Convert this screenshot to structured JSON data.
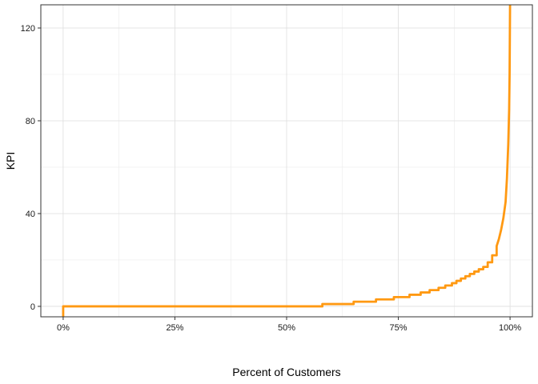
{
  "chart_data": {
    "type": "line",
    "step": true,
    "title": "",
    "xlabel": "Percent of Customers",
    "ylabel": "KPI",
    "xlim": [
      -0.05,
      1.05
    ],
    "ylim": [
      -4.5,
      130
    ],
    "x_ticks": [
      0,
      0.25,
      0.5,
      0.75,
      1.0
    ],
    "x_tick_labels": [
      "0%",
      "25%",
      "50%",
      "75%",
      "100%"
    ],
    "y_ticks": [
      0,
      40,
      80,
      120
    ],
    "y_tick_labels": [
      "0",
      "40",
      "80",
      "120"
    ],
    "grid": true,
    "legend": "none",
    "line_color": "#FF9912",
    "series": [
      {
        "x": [
          0,
          0,
          0.58,
          0.58,
          0.65,
          0.65,
          0.7,
          0.7,
          0.74,
          0.74,
          0.775,
          0.775,
          0.8,
          0.8,
          0.82,
          0.82,
          0.84,
          0.84,
          0.855,
          0.855,
          0.87,
          0.87,
          0.88,
          0.88,
          0.89,
          0.89,
          0.9,
          0.9,
          0.91,
          0.91,
          0.92,
          0.92,
          0.93,
          0.93,
          0.94,
          0.94,
          0.95,
          0.95,
          0.96,
          0.96,
          0.97,
          0.97,
          0.975,
          0.98,
          0.985,
          0.99,
          0.993,
          0.996,
          0.998,
          0.999,
          1.0
        ],
        "y": [
          -5,
          0,
          0,
          1,
          1,
          2,
          2,
          3,
          3,
          4,
          4,
          5,
          5,
          6,
          6,
          7,
          7,
          8,
          8,
          9,
          9,
          10,
          10,
          11,
          11,
          12,
          12,
          13,
          13,
          14,
          14,
          15,
          15,
          16,
          16,
          17,
          17,
          19,
          19,
          22,
          22,
          26,
          29,
          33,
          38,
          45,
          55,
          70,
          85,
          100,
          131
        ]
      }
    ]
  }
}
